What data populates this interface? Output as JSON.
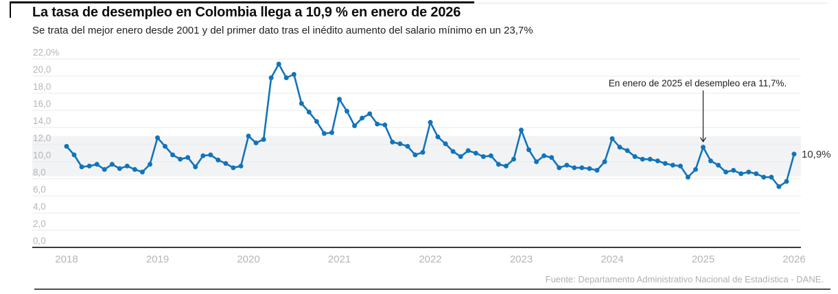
{
  "header": {
    "title": "La tasa de desempleo en Colombia llega a 10,9 % en enero de 2026",
    "subtitle": "Se trata del mejor enero desde 2001 y del primer dato tras el inédito aumento del salario mínimo en un 23,7%"
  },
  "footer": {
    "source": "Fuente: Departamento Administrativo Nacional de Estadística - DANE."
  },
  "chart_data": {
    "type": "line",
    "title": "La tasa de desempleo en Colombia llega a 10,9 % en enero de 2026",
    "unit": "%",
    "frequency": "monthly",
    "start_month": "2018-01",
    "end_month": "2026-01",
    "ylim": [
      0,
      22
    ],
    "grid": true,
    "x_axis": {
      "ticks": [
        "2018",
        "2019",
        "2020",
        "2021",
        "2022",
        "2023",
        "2024",
        "2025",
        "2026"
      ]
    },
    "y_axis": {
      "ticks": [
        {
          "value": 22,
          "label": "22,0%"
        },
        {
          "value": 20,
          "label": "20,0"
        },
        {
          "value": 18,
          "label": "18,0"
        },
        {
          "value": 16,
          "label": "16,0"
        },
        {
          "value": 14,
          "label": "14,0"
        },
        {
          "value": 12,
          "label": "12,0"
        },
        {
          "value": 10,
          "label": "10,0"
        },
        {
          "value": 8,
          "label": "8,0"
        },
        {
          "value": 6,
          "label": "6,0"
        },
        {
          "value": 4,
          "label": "4,0"
        },
        {
          "value": 2,
          "label": "2,0"
        },
        {
          "value": 0,
          "label": "0,0"
        }
      ]
    },
    "series": [
      {
        "name": "Tasa de desempleo",
        "values": [
          11.8,
          10.8,
          9.4,
          9.5,
          9.7,
          9.1,
          9.7,
          9.2,
          9.5,
          9.1,
          8.8,
          9.7,
          12.8,
          11.8,
          10.8,
          10.3,
          10.5,
          9.4,
          10.7,
          10.8,
          10.2,
          9.8,
          9.3,
          9.5,
          13.0,
          12.2,
          12.6,
          19.8,
          21.4,
          19.8,
          20.2,
          16.8,
          15.8,
          14.7,
          13.3,
          13.4,
          17.3,
          15.9,
          14.2,
          15.1,
          15.6,
          14.4,
          14.3,
          12.3,
          12.1,
          11.8,
          10.8,
          11.1,
          14.6,
          12.9,
          12.1,
          11.2,
          10.6,
          11.3,
          11.0,
          10.6,
          10.7,
          9.7,
          9.5,
          10.3,
          13.7,
          11.4,
          10.0,
          10.7,
          10.5,
          9.3,
          9.6,
          9.3,
          9.3,
          9.2,
          9.0,
          10.0,
          12.7,
          11.7,
          11.3,
          10.6,
          10.3,
          10.3,
          10.1,
          9.8,
          9.6,
          9.5,
          8.2,
          9.1,
          11.7,
          10.1,
          9.6,
          8.8,
          9.0,
          8.6,
          8.8,
          8.6,
          8.2,
          8.2,
          7.1,
          7.7,
          10.9
        ]
      }
    ],
    "highlight_band": {
      "from": 8.3,
      "to": 13.0
    },
    "annotation": {
      "text": "En enero de 2025 el desempleo era 11,7%.",
      "points_to_month": "2025-01",
      "points_to_value": 11.7
    },
    "last_point_label": "10,9%",
    "legend": "none",
    "colors": {
      "line": "#1174b9",
      "band": "#f2f3f5",
      "grid": "#e7e8ea",
      "axis_line": "#3a3a3a",
      "axis_text": "#b5b5b9",
      "annotation_text": "#1b1b1b",
      "value_label_text": "#303030"
    }
  }
}
